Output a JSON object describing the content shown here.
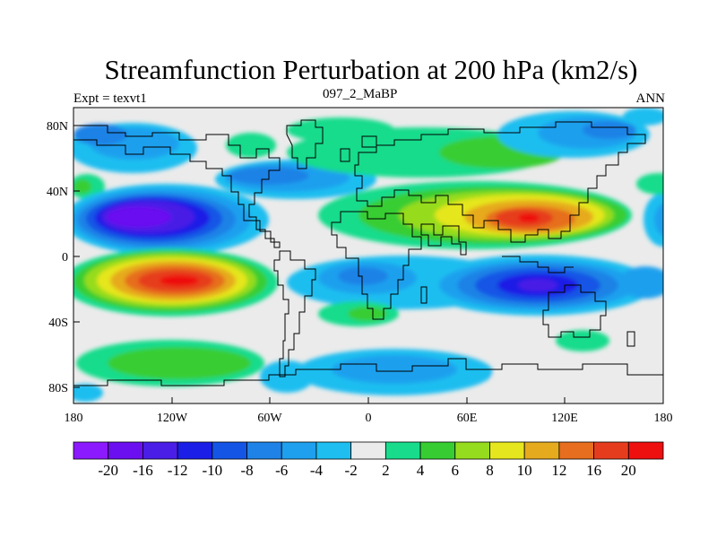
{
  "title": "Streamfunction Perturbation at 200 hPa (km2/s)",
  "subtitle_left": "Expt = texvt1",
  "subtitle_center": "097_2_MaBP",
  "subtitle_right": "ANN",
  "chart_data": {
    "type": "heatmap",
    "title": "Streamfunction Perturbation at 200 hPa (km2/s)",
    "variable": "Streamfunction Perturbation",
    "units": "km2/s",
    "level": "200 hPa",
    "lon_ticks": [
      "180",
      "120W",
      "60W",
      "0",
      "60E",
      "120E",
      "180"
    ],
    "lat_ticks": [
      "80N",
      "40N",
      "0",
      "40S",
      "80S"
    ],
    "xlim": [
      -180,
      180
    ],
    "ylim": [
      -90,
      90
    ],
    "contour_levels": [
      -20,
      -16,
      -12,
      -10,
      -8,
      -6,
      -4,
      -2,
      2,
      4,
      6,
      8,
      10,
      12,
      16,
      20
    ],
    "colorbar_labels": [
      "-20",
      "-16",
      "-12",
      "-10",
      "-8",
      "-6",
      "-4",
      "-2",
      "2",
      "4",
      "6",
      "8",
      "10",
      "12",
      "16",
      "20"
    ],
    "colorbar_colors": [
      "#8c1aff",
      "#6b0ff0",
      "#4a1ee6",
      "#1a1ee6",
      "#1455e6",
      "#1f82e6",
      "#1ea0ee",
      "#1ebef0",
      "#ebebeb",
      "#18dc8c",
      "#37cd32",
      "#96dc1e",
      "#e6e61e",
      "#e6aa1e",
      "#e66e1e",
      "#e63c1e",
      "#ee0f0f"
    ],
    "features": [
      {
        "name": "negative center",
        "lon": -130,
        "lat": 25,
        "min_value": -20
      },
      {
        "name": "positive center",
        "lon": -115,
        "lat": -18,
        "max_value": 20
      },
      {
        "name": "positive center",
        "lon": 100,
        "lat": 22,
        "max_value": 16
      },
      {
        "name": "negative center",
        "lon": 115,
        "lat": -20,
        "min_value": -12
      }
    ]
  }
}
